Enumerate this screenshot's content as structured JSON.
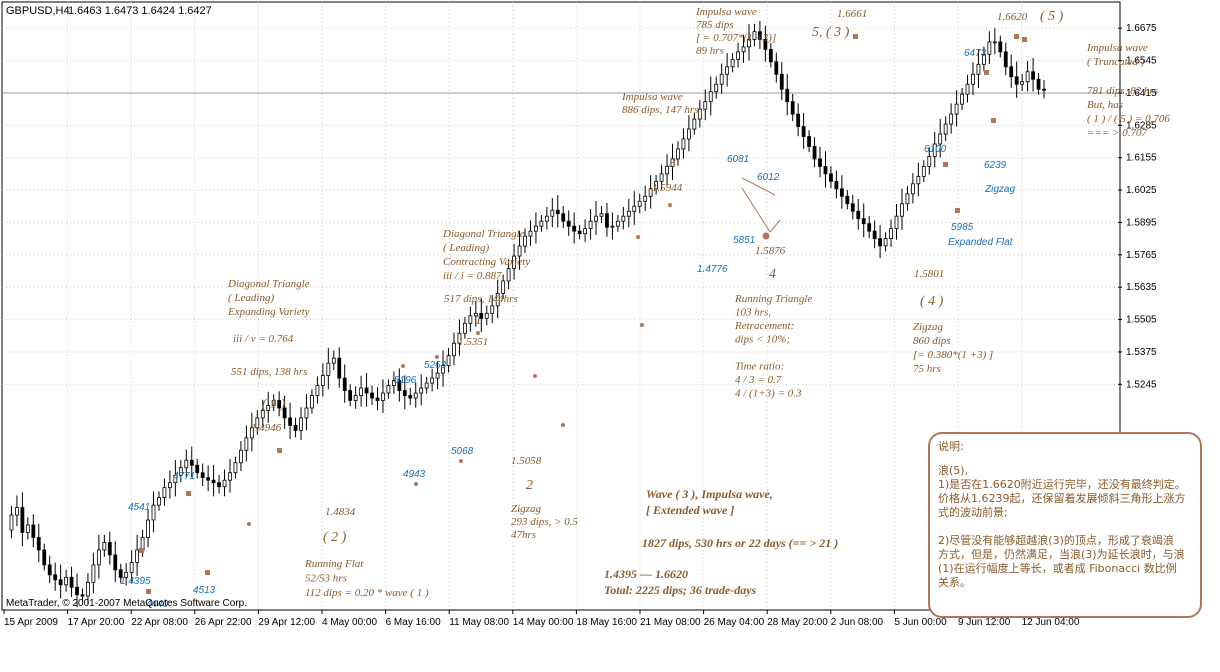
{
  "header": {
    "symbol": "GBPUSD,H4",
    "ohlc": "1.6463 1.6473 1.6424 1.6427"
  },
  "copyright": "MetaTrader, © 2001-2007 MetaQuotes Software Corp.",
  "colors": {
    "candle": "#000000",
    "annotation": "#8a5a2b",
    "wave_label_blue": "#1a6fb5",
    "marker": "#b0765a",
    "grid": "#c8c8c8",
    "box_border": "#b0765a"
  },
  "chart_data": {
    "type": "candlestick",
    "title": "GBPUSD,H4",
    "ylim": [
      1.4395,
      1.674
    ],
    "y_ticks": [
      "1.6675",
      "1.6545",
      "1.6415",
      "1.6285",
      "1.6155",
      "1.6025",
      "1.5895",
      "1.5765",
      "1.5635",
      "1.5505",
      "1.5375",
      "1.5245"
    ],
    "x_ticks": [
      "15 Apr 2009",
      "17 Apr 20:00",
      "22 Apr 08:00",
      "26 Apr 22:00",
      "29 Apr 12:00",
      "4 May 00:00",
      "6 May 16:00",
      "11 May 08:00",
      "14 May 00:00",
      "18 May 16:00",
      "21 May 08:00",
      "26 May 04:00",
      "28 May 20:00",
      "2 Jun 08:00",
      "5 Jun 00:00",
      "9 Jun 12:00",
      "12 Jun 04:00"
    ],
    "grid": true,
    "price_path": [
      1.466,
      1.472,
      1.475,
      1.465,
      1.468,
      1.463,
      1.458,
      1.452,
      1.448,
      1.446,
      1.444,
      1.447,
      1.443,
      1.44,
      1.4395,
      1.445,
      1.452,
      1.458,
      1.461,
      1.456,
      1.45,
      1.447,
      1.449,
      1.453,
      1.458,
      1.463,
      1.47,
      1.476,
      1.479,
      1.483,
      1.485,
      1.488,
      1.491,
      1.494,
      1.492,
      1.489,
      1.487,
      1.486,
      1.485,
      1.4834,
      1.486,
      1.489,
      1.493,
      1.498,
      1.503,
      1.507,
      1.511,
      1.514,
      1.516,
      1.518,
      1.515,
      1.511,
      1.508,
      1.506,
      1.511,
      1.515,
      1.52,
      1.524,
      1.528,
      1.533,
      1.535,
      1.527,
      1.522,
      1.518,
      1.52,
      1.523,
      1.521,
      1.519,
      1.518,
      1.521,
      1.524,
      1.526,
      1.522,
      1.52,
      1.519,
      1.521,
      1.523,
      1.525,
      1.527,
      1.529,
      1.532,
      1.536,
      1.541,
      1.545,
      1.549,
      1.552,
      1.553,
      1.551,
      1.553,
      1.556,
      1.561,
      1.566,
      1.571,
      1.576,
      1.58,
      1.584,
      1.586,
      1.588,
      1.59,
      1.592,
      1.5944,
      1.593,
      1.59,
      1.588,
      1.586,
      1.585,
      1.587,
      1.59,
      1.592,
      1.593,
      1.5876,
      1.588,
      1.59,
      1.592,
      1.594,
      1.596,
      1.598,
      1.6,
      1.603,
      1.606,
      1.609,
      1.612,
      1.615,
      1.619,
      1.623,
      1.627,
      1.631,
      1.635,
      1.638,
      1.642,
      1.645,
      1.649,
      1.652,
      1.655,
      1.658,
      1.66,
      1.663,
      1.6661,
      1.663,
      1.659,
      1.654,
      1.649,
      1.643,
      1.638,
      1.633,
      1.628,
      1.624,
      1.62,
      1.615,
      1.612,
      1.609,
      1.606,
      1.603,
      1.6,
      1.597,
      1.594,
      1.591,
      1.589,
      1.586,
      1.583,
      1.5801,
      1.583,
      1.587,
      1.592,
      1.597,
      1.601,
      1.605,
      1.608,
      1.612,
      1.616,
      1.621,
      1.625,
      1.629,
      1.633,
      1.637,
      1.641,
      1.645,
      1.649,
      1.653,
      1.657,
      1.662,
      1.662,
      1.658,
      1.652,
      1.648,
      1.645,
      1.646,
      1.65,
      1.647,
      1.643,
      1.6427
    ]
  },
  "price_labels": {
    "p1_6661": "1.6661",
    "p1_6620": "1.6620",
    "p1_5944": "1.5944",
    "p1_5876": "1.5876",
    "p1_5801": "1.5801",
    "p1_5351": "1.5351",
    "p1_5058": "1.5058",
    "p1_4946": "1.4946",
    "p1_4834": "1.4834",
    "p1_4395": "1.4395"
  },
  "wave_labels": {
    "w5_3": "5, ( 3 )",
    "w5_top": "( 5 )",
    "w3": "3",
    "w4": "4",
    "w1_brk": "( 1 )",
    "w2_brk": "( 2 )",
    "w1": "1",
    "w2": "2",
    "w4_brk": "( 4 )"
  },
  "blue_labels": {
    "b4541": "4541",
    "b4771": "4771",
    "b4440": "4440",
    "b4513": "4513",
    "b4943": "4943",
    "b5068": "5068",
    "b5196": "5196",
    "b5263": "5263",
    "b6081": "6081",
    "b6012": "6012",
    "b5851": "5851",
    "b4776": "1.4776",
    "b6100": "6100",
    "b6473": "6473",
    "b6239": "6239",
    "bzig": "Zigzag",
    "b5985": "5985",
    "bexp": "Expanded Flat"
  },
  "annotations": {
    "impulse_top": [
      "Impulsa wave",
      "785 dips",
      "[ = 0.707*(1 +3)]",
      "89 hrs"
    ],
    "impulse_mid": [
      "Impulsa wave",
      "886 dips, 147 hrs"
    ],
    "impulse_right": [
      "Impulsa  wave",
      "( Truncated )"
    ],
    "impulse_right2": [
      "781 dips, 82 hrs",
      "But, has",
      "( 1 ) / ( 5 ) = 0.706",
      "=== > 0.707"
    ],
    "diag_lead": [
      "Diagonal Triangle",
      "( Leading)",
      "Contracting Variety",
      "iii / i = 0.887"
    ],
    "diag_lead_hrs": "517 dips, 144hrs",
    "diag_exp": [
      "Diagonal Triangle",
      "( Leading)",
      "Expanding Variety"
    ],
    "diag_exp_ratio": "iii / v = 0.764",
    "diag_exp_hrs": "551 dips, 138 hrs",
    "running_tri": [
      "Running Triangle",
      "103 hrs,",
      "Retracement:",
      "dips < 10%;",
      "",
      "Time ratio:",
      "4 / 3 = 0.7",
      "4 / (1+3) = 0.3"
    ],
    "zigzag4": [
      "Zigzag",
      "860 dips",
      "[= 0.380*(1 +3) ]",
      "75 hrs"
    ],
    "zigzag2": [
      "Zigzag",
      "293 dips, > 0.5",
      "47hrs"
    ],
    "running_flat": [
      "Running Flat",
      "52/53 hrs",
      "112 dips = 0.20 * wave ( 1 )"
    ],
    "wave3_ext": [
      "Wave ( 3 ),    Impulsa wave,",
      "[ Extended wave ]"
    ],
    "wave3_dips": "1827  dips, 530 hrs or 22 days (== > 21 )",
    "total": [
      "1.4395 — 1.6620",
      "Total:  2225 dips;   36 trade-days"
    ]
  },
  "note": {
    "title": "说明:",
    "lines": [
      "浪(5),",
      "1)是否在1.6620附近运行完毕，还没有最终判定。",
      "价格从1.6239起，还保留着发展倾斜三角形上涨方",
      "式的波动前景;",
      "",
      "2)尽管没有能够超越浪(3)的顶点，形成了衰竭浪",
      "方式，但是，仍然满足，当浪(3)为延长浪时，与浪",
      "(1)在运行幅度上等长，或者成 Fibonacci 数比例",
      "关系。"
    ]
  }
}
